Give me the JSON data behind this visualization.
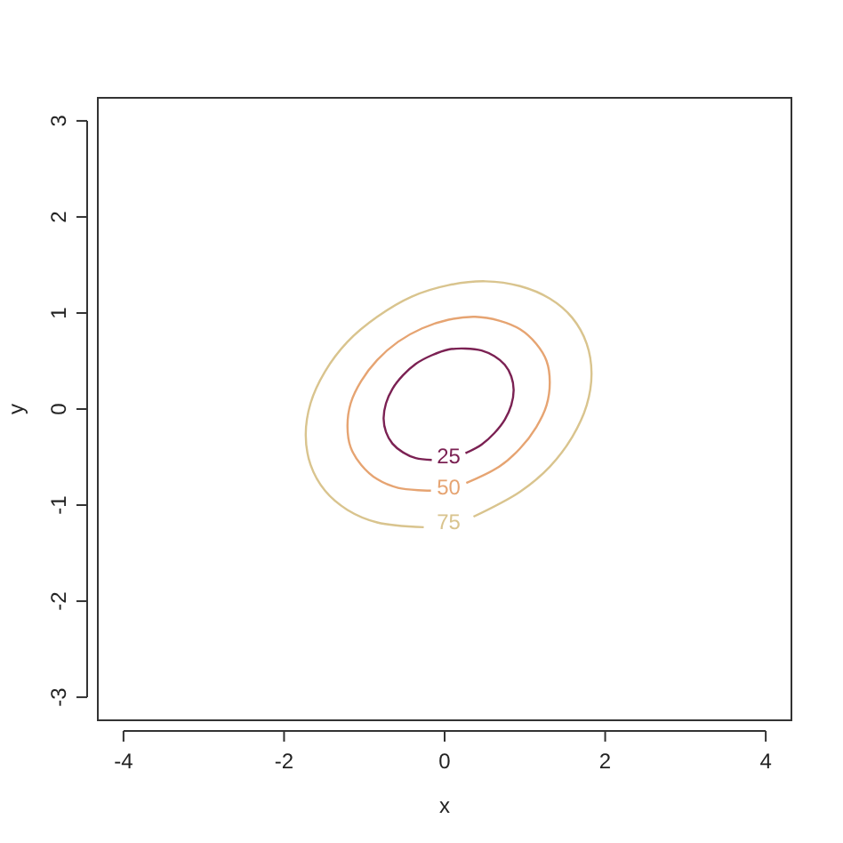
{
  "chart_data": {
    "type": "line",
    "xlabel": "x",
    "ylabel": "y",
    "xlim": [
      -4.32,
      4.32
    ],
    "xticks": [
      -4,
      -2,
      0,
      2,
      4
    ],
    "ylim": [
      -3.24,
      3.24
    ],
    "yticks": [
      -3,
      -2,
      -1,
      0,
      1,
      2,
      3
    ],
    "series": [
      {
        "name": "25",
        "color": "#7b2153",
        "x": [
          0.26,
          0.46,
          0.62,
          0.75,
          0.83,
          0.86,
          0.83,
          0.75,
          0.62,
          0.46,
          0.26,
          0.05,
          -0.16,
          -0.36,
          -0.52,
          -0.65,
          -0.73,
          -0.76,
          -0.73,
          -0.65,
          -0.52,
          -0.36,
          -0.16
        ],
        "values": [
          -0.46,
          -0.37,
          -0.25,
          -0.11,
          0.04,
          0.2,
          0.34,
          0.46,
          0.55,
          0.61,
          0.63,
          0.62,
          0.56,
          0.47,
          0.35,
          0.21,
          0.06,
          -0.1,
          -0.24,
          -0.36,
          -0.45,
          -0.51,
          -0.53
        ]
      },
      {
        "name": "50",
        "color": "#e6a472",
        "x": [
          0.27,
          0.68,
          0.94,
          1.14,
          1.27,
          1.31,
          1.27,
          1.14,
          0.94,
          0.68,
          0.38,
          0.05,
          -0.28,
          -0.58,
          -0.84,
          -1.04,
          -1.17,
          -1.21,
          -1.17,
          -1.04,
          -0.84,
          -0.58,
          -0.17
        ],
        "values": [
          -0.77,
          -0.6,
          -0.41,
          -0.19,
          0.04,
          0.28,
          0.5,
          0.68,
          0.83,
          0.92,
          0.96,
          0.93,
          0.84,
          0.7,
          0.51,
          0.29,
          0.06,
          -0.18,
          -0.4,
          -0.58,
          -0.73,
          -0.82,
          -0.85
        ]
      },
      {
        "name": "75",
        "color": "#d9c48e",
        "x": [
          0.36,
          0.94,
          1.31,
          1.59,
          1.77,
          1.83,
          1.77,
          1.59,
          1.31,
          0.94,
          0.51,
          0.05,
          -0.41,
          -0.84,
          -1.21,
          -1.49,
          -1.67,
          -1.73,
          -1.67,
          -1.49,
          -1.21,
          -0.84,
          -0.26
        ],
        "values": [
          -1.12,
          -0.86,
          -0.6,
          -0.29,
          0.04,
          0.37,
          0.68,
          0.95,
          1.15,
          1.28,
          1.33,
          1.29,
          1.17,
          0.96,
          0.7,
          0.39,
          0.06,
          -0.27,
          -0.58,
          -0.85,
          -1.05,
          -1.18,
          -1.23
        ]
      }
    ]
  }
}
